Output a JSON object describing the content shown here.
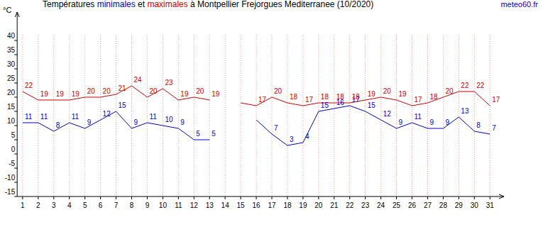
{
  "chart_data": {
    "type": "line",
    "title": "Températures minimales et maximales à Montpellier Frejorgues Mediterranee (10/2020)",
    "ylabel": "°C",
    "source": "meteo60.fr",
    "x": [
      1,
      2,
      3,
      4,
      5,
      6,
      7,
      8,
      9,
      10,
      11,
      12,
      13,
      14,
      15,
      16,
      17,
      18,
      19,
      20,
      21,
      22,
      23,
      24,
      25,
      26,
      27,
      28,
      29,
      30,
      31
    ],
    "xlim": [
      0.65,
      31.9
    ],
    "xticks": [
      1,
      2,
      3,
      4,
      5,
      6,
      7,
      8,
      9,
      10,
      11,
      12,
      13,
      14,
      15,
      16,
      17,
      18,
      19,
      20,
      21,
      22,
      23,
      24,
      25,
      26,
      27,
      28,
      29,
      30,
      31
    ],
    "ylim": [
      -15,
      50
    ],
    "yticks": [
      -15,
      -10,
      -5,
      0,
      5,
      10,
      15,
      20,
      25,
      30,
      35,
      40
    ],
    "grid": true,
    "data_labels": true,
    "series": [
      {
        "name": "minimales",
        "color": "#0000cc",
        "values": [
          11,
          11,
          8,
          11,
          9,
          12,
          15,
          9,
          11,
          10,
          9,
          5,
          5,
          null,
          null,
          12,
          7,
          3,
          4,
          15,
          16,
          17,
          15,
          12,
          9,
          11,
          9,
          9,
          13,
          8,
          7
        ],
        "value_labels": [
          "11",
          "11",
          "8",
          "11",
          "9",
          "12",
          "15",
          "9",
          "11",
          "10",
          "9",
          "5",
          "5",
          null,
          null,
          null,
          "7",
          "3",
          "4",
          "15",
          "16",
          "17",
          "15",
          "12",
          "9",
          "11",
          "9",
          "9",
          "13",
          "8",
          "7"
        ]
      },
      {
        "name": "maximales",
        "color": "#cc0000",
        "values": [
          22,
          19,
          19,
          19,
          20,
          20,
          21,
          24,
          20,
          23,
          19,
          20,
          19,
          null,
          18,
          17,
          20,
          18,
          17,
          18,
          18,
          18,
          19,
          20,
          19,
          17,
          18,
          20,
          22,
          22,
          17
        ],
        "value_labels": [
          "22",
          "19",
          "19",
          "19",
          "20",
          "20",
          "21",
          "24",
          "20",
          "23",
          "19",
          "20",
          "19",
          null,
          null,
          "17",
          "20",
          "18",
          "17",
          "18",
          "18",
          "18",
          "19",
          "20",
          "19",
          "17",
          "18",
          "20",
          "22",
          "22",
          "17"
        ]
      }
    ]
  }
}
